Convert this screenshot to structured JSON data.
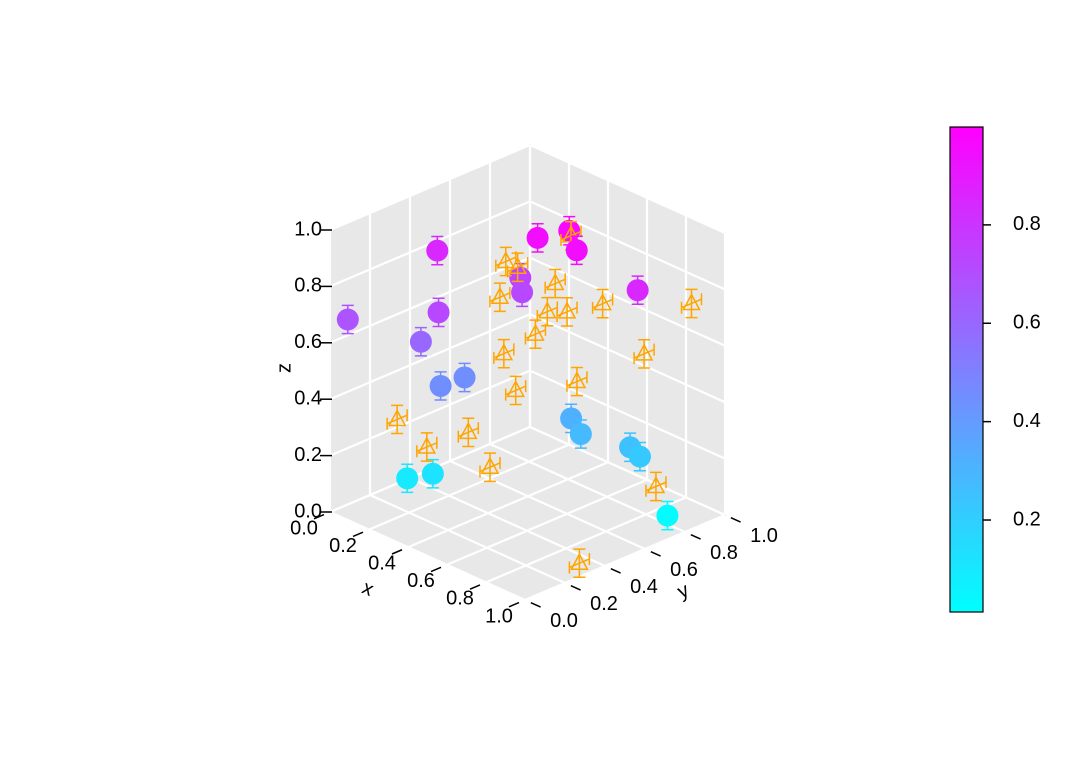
{
  "chart_data": {
    "type": "scatter3d",
    "xlabel": "x",
    "ylabel": "y",
    "zlabel": "z",
    "xlim": [
      0,
      1
    ],
    "ylim": [
      0,
      1
    ],
    "zlim": [
      0,
      1
    ],
    "xticks": [
      {
        "value": 0,
        "label": "0.0"
      },
      0.2,
      0.4,
      0.6,
      0.8,
      {
        "value": 1,
        "label": "1.0"
      }
    ],
    "yticks": [
      {
        "value": 0,
        "label": "0.0"
      },
      0.2,
      0.4,
      0.6,
      0.8,
      {
        "value": 1,
        "label": "1.0"
      }
    ],
    "zticks": [
      {
        "value": 0,
        "label": "0.0"
      },
      0.2,
      0.4,
      0.6,
      0.8,
      {
        "value": 1,
        "label": "1.0"
      }
    ],
    "grid": true,
    "colorbar": {
      "colors": [
        "#00ffff",
        "#ff00ff"
      ],
      "lim": [
        0.013,
        0.999
      ],
      "ticks": [
        0.2,
        0.4,
        0.6,
        0.8
      ]
    },
    "series": [
      {
        "marker": "circle",
        "color_by": "z",
        "x": [
          0.04,
          0.14,
          0.29,
          0.22,
          0.28,
          0.29,
          0.16,
          0.23,
          0.48,
          0.55,
          0.65,
          0.34,
          0.38,
          0.87,
          0.58,
          0.63,
          0.78,
          0.81,
          0.91
        ],
        "y": [
          0.05,
          0.4,
          0.26,
          0.24,
          0.28,
          0.39,
          0.23,
          0.29,
          0.57,
          0.66,
          0.6,
          0.62,
          0.59,
          0.69,
          0.64,
          0.64,
          0.74,
          0.76,
          0.8
        ],
        "z": [
          0.68,
          0.85,
          0.72,
          0.6,
          0.45,
          0.45,
          0.1,
          0.12,
          0.95,
          0.97,
          0.95,
          0.75,
          0.72,
          0.85,
          0.32,
          0.28,
          0.25,
          0.22,
          0.03
        ],
        "zerr": [
          0.05,
          0.05,
          0.05,
          0.05,
          0.05,
          0.05,
          0.05,
          0.05,
          0.05,
          0.05,
          0.05,
          0.05,
          0.05,
          0.05,
          0.05,
          0.05,
          0.05,
          0.05,
          0.05
        ]
      },
      {
        "marker": "triangle",
        "color": "#ffa500",
        "x": [
          0.17,
          0.24,
          0.34,
          0.4,
          0.43,
          0.46,
          0.51,
          0.54,
          0.56,
          0.59,
          0.61,
          0.42,
          0.44,
          0.47,
          0.6,
          0.68,
          0.78,
          0.9,
          0.81,
          0.92
        ],
        "y": [
          0.17,
          0.25,
          0.36,
          0.41,
          0.45,
          0.48,
          0.53,
          0.56,
          0.58,
          0.61,
          0.64,
          0.44,
          0.45,
          0.48,
          0.62,
          0.7,
          0.81,
          0.93,
          0.84,
          0.35
        ],
        "z": [
          0.33,
          0.23,
          0.28,
          0.16,
          0.56,
          0.43,
          0.63,
          0.71,
          0.81,
          0.71,
          0.46,
          0.76,
          0.89,
          0.87,
          0.98,
          0.74,
          0.56,
          0.74,
          0.09,
          0
        ],
        "yerr": [
          0.05,
          0.05,
          0.05,
          0.05,
          0.05,
          0.05,
          0.05,
          0.05,
          0.05,
          0.05,
          0.05,
          0.05,
          0.05,
          0.05,
          0.05,
          0.05,
          0.05,
          0.05,
          0.05,
          0.05
        ],
        "zerr": [
          0.05,
          0.05,
          0.05,
          0.05,
          0.05,
          0.05,
          0.05,
          0.05,
          0.05,
          0.05,
          0.05,
          0.05,
          0.05,
          0.05,
          0.05,
          0.05,
          0.05,
          0.05,
          0.05,
          0.05
        ]
      }
    ]
  }
}
